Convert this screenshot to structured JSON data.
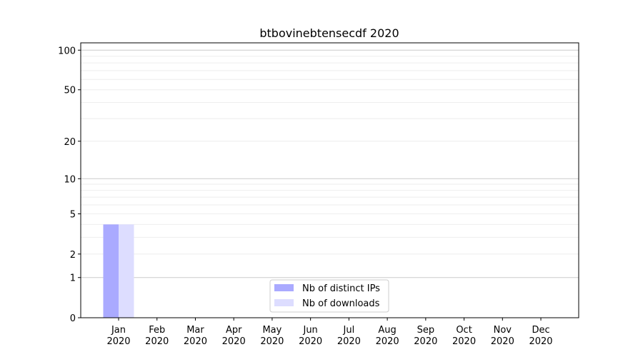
{
  "chart_data": {
    "type": "bar",
    "title": "btbovinebtensecdf 2020",
    "xlabel": "",
    "ylabel": "",
    "yscale": "log(1+y)",
    "ylim": [
      0,
      113.6
    ],
    "yticks": [
      0,
      1,
      2,
      5,
      10,
      20,
      50,
      100
    ],
    "ytick_labels": [
      "0",
      "1",
      "2",
      "5",
      "10",
      "20",
      "50",
      "100"
    ],
    "grid": true,
    "legend_position": "lower-center",
    "categories": [
      "Jan\n2020",
      "Feb\n2020",
      "Mar\n2020",
      "Apr\n2020",
      "May\n2020",
      "Jun\n2020",
      "Jul\n2020",
      "Aug\n2020",
      "Sep\n2020",
      "Oct\n2020",
      "Nov\n2020",
      "Dec\n2020"
    ],
    "series": [
      {
        "name": "Nb of distinct IPs",
        "color": "#aaaaff",
        "values": [
          4,
          0,
          0,
          0,
          0,
          0,
          0,
          0,
          0,
          0,
          0,
          0
        ]
      },
      {
        "name": "Nb of downloads",
        "color": "#ddddff",
        "values": [
          4,
          0,
          0,
          0,
          0,
          0,
          0,
          0,
          0,
          0,
          0,
          0
        ]
      }
    ]
  }
}
